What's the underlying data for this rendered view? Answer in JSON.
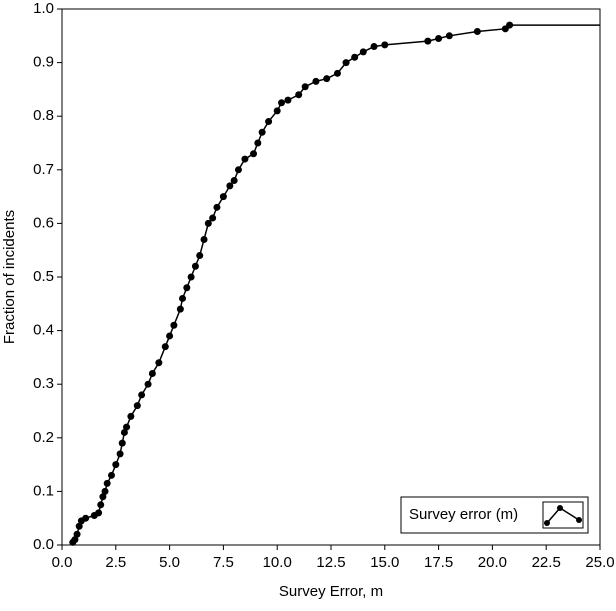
{
  "chart_data": {
    "type": "line",
    "xlabel": "Survey Error, m",
    "ylabel": "Fraction of incidents",
    "x": [
      0.5,
      0.6,
      0.7,
      0.8,
      0.9,
      1.1,
      1.5,
      1.7,
      1.8,
      1.9,
      2.0,
      2.1,
      2.3,
      2.5,
      2.7,
      2.8,
      2.9,
      3.0,
      3.2,
      3.5,
      3.7,
      4.0,
      4.2,
      4.5,
      4.8,
      5.0,
      5.2,
      5.5,
      5.6,
      5.8,
      6.0,
      6.2,
      6.4,
      6.6,
      6.8,
      7.0,
      7.2,
      7.5,
      7.8,
      8.0,
      8.2,
      8.5,
      8.9,
      9.1,
      9.3,
      9.6,
      10.0,
      10.2,
      10.5,
      11.0,
      11.3,
      11.8,
      12.3,
      12.8,
      13.2,
      13.6,
      14.0,
      14.5,
      15.0,
      17.0,
      17.5,
      18.0,
      19.3,
      20.6,
      20.8
    ],
    "series": [
      {
        "name": "Survey error (m)",
        "color": "#000000",
        "values": [
          0.005,
          0.01,
          0.02,
          0.035,
          0.045,
          0.05,
          0.055,
          0.06,
          0.075,
          0.09,
          0.1,
          0.115,
          0.13,
          0.15,
          0.17,
          0.19,
          0.21,
          0.22,
          0.24,
          0.26,
          0.28,
          0.3,
          0.32,
          0.34,
          0.37,
          0.39,
          0.41,
          0.44,
          0.46,
          0.48,
          0.5,
          0.52,
          0.54,
          0.57,
          0.6,
          0.61,
          0.63,
          0.65,
          0.67,
          0.68,
          0.7,
          0.72,
          0.73,
          0.75,
          0.77,
          0.79,
          0.81,
          0.825,
          0.83,
          0.84,
          0.855,
          0.865,
          0.87,
          0.88,
          0.9,
          0.91,
          0.92,
          0.93,
          0.933,
          0.94,
          0.945,
          0.95,
          0.958,
          0.963,
          0.97
        ]
      }
    ],
    "xlim": [
      0,
      25
    ],
    "xticks": [
      {
        "value": 0,
        "label": "0.0"
      },
      2.5,
      {
        "value": 5,
        "label": "5.0"
      },
      7.5,
      {
        "value": 10,
        "label": "10.0"
      },
      12.5,
      {
        "value": 15,
        "label": "15.0"
      },
      17.5,
      {
        "value": 20,
        "label": "20.0"
      },
      22.5,
      {
        "value": 25,
        "label": "25.0"
      }
    ],
    "ylim": [
      0,
      1
    ],
    "yticks": [
      {
        "value": 0,
        "label": "0.0"
      },
      0.1,
      0.2,
      0.3,
      0.4,
      0.5,
      0.6,
      0.7,
      0.8,
      0.9,
      {
        "value": 1,
        "label": "1.0"
      }
    ],
    "grid": false,
    "legend": "lower right"
  }
}
